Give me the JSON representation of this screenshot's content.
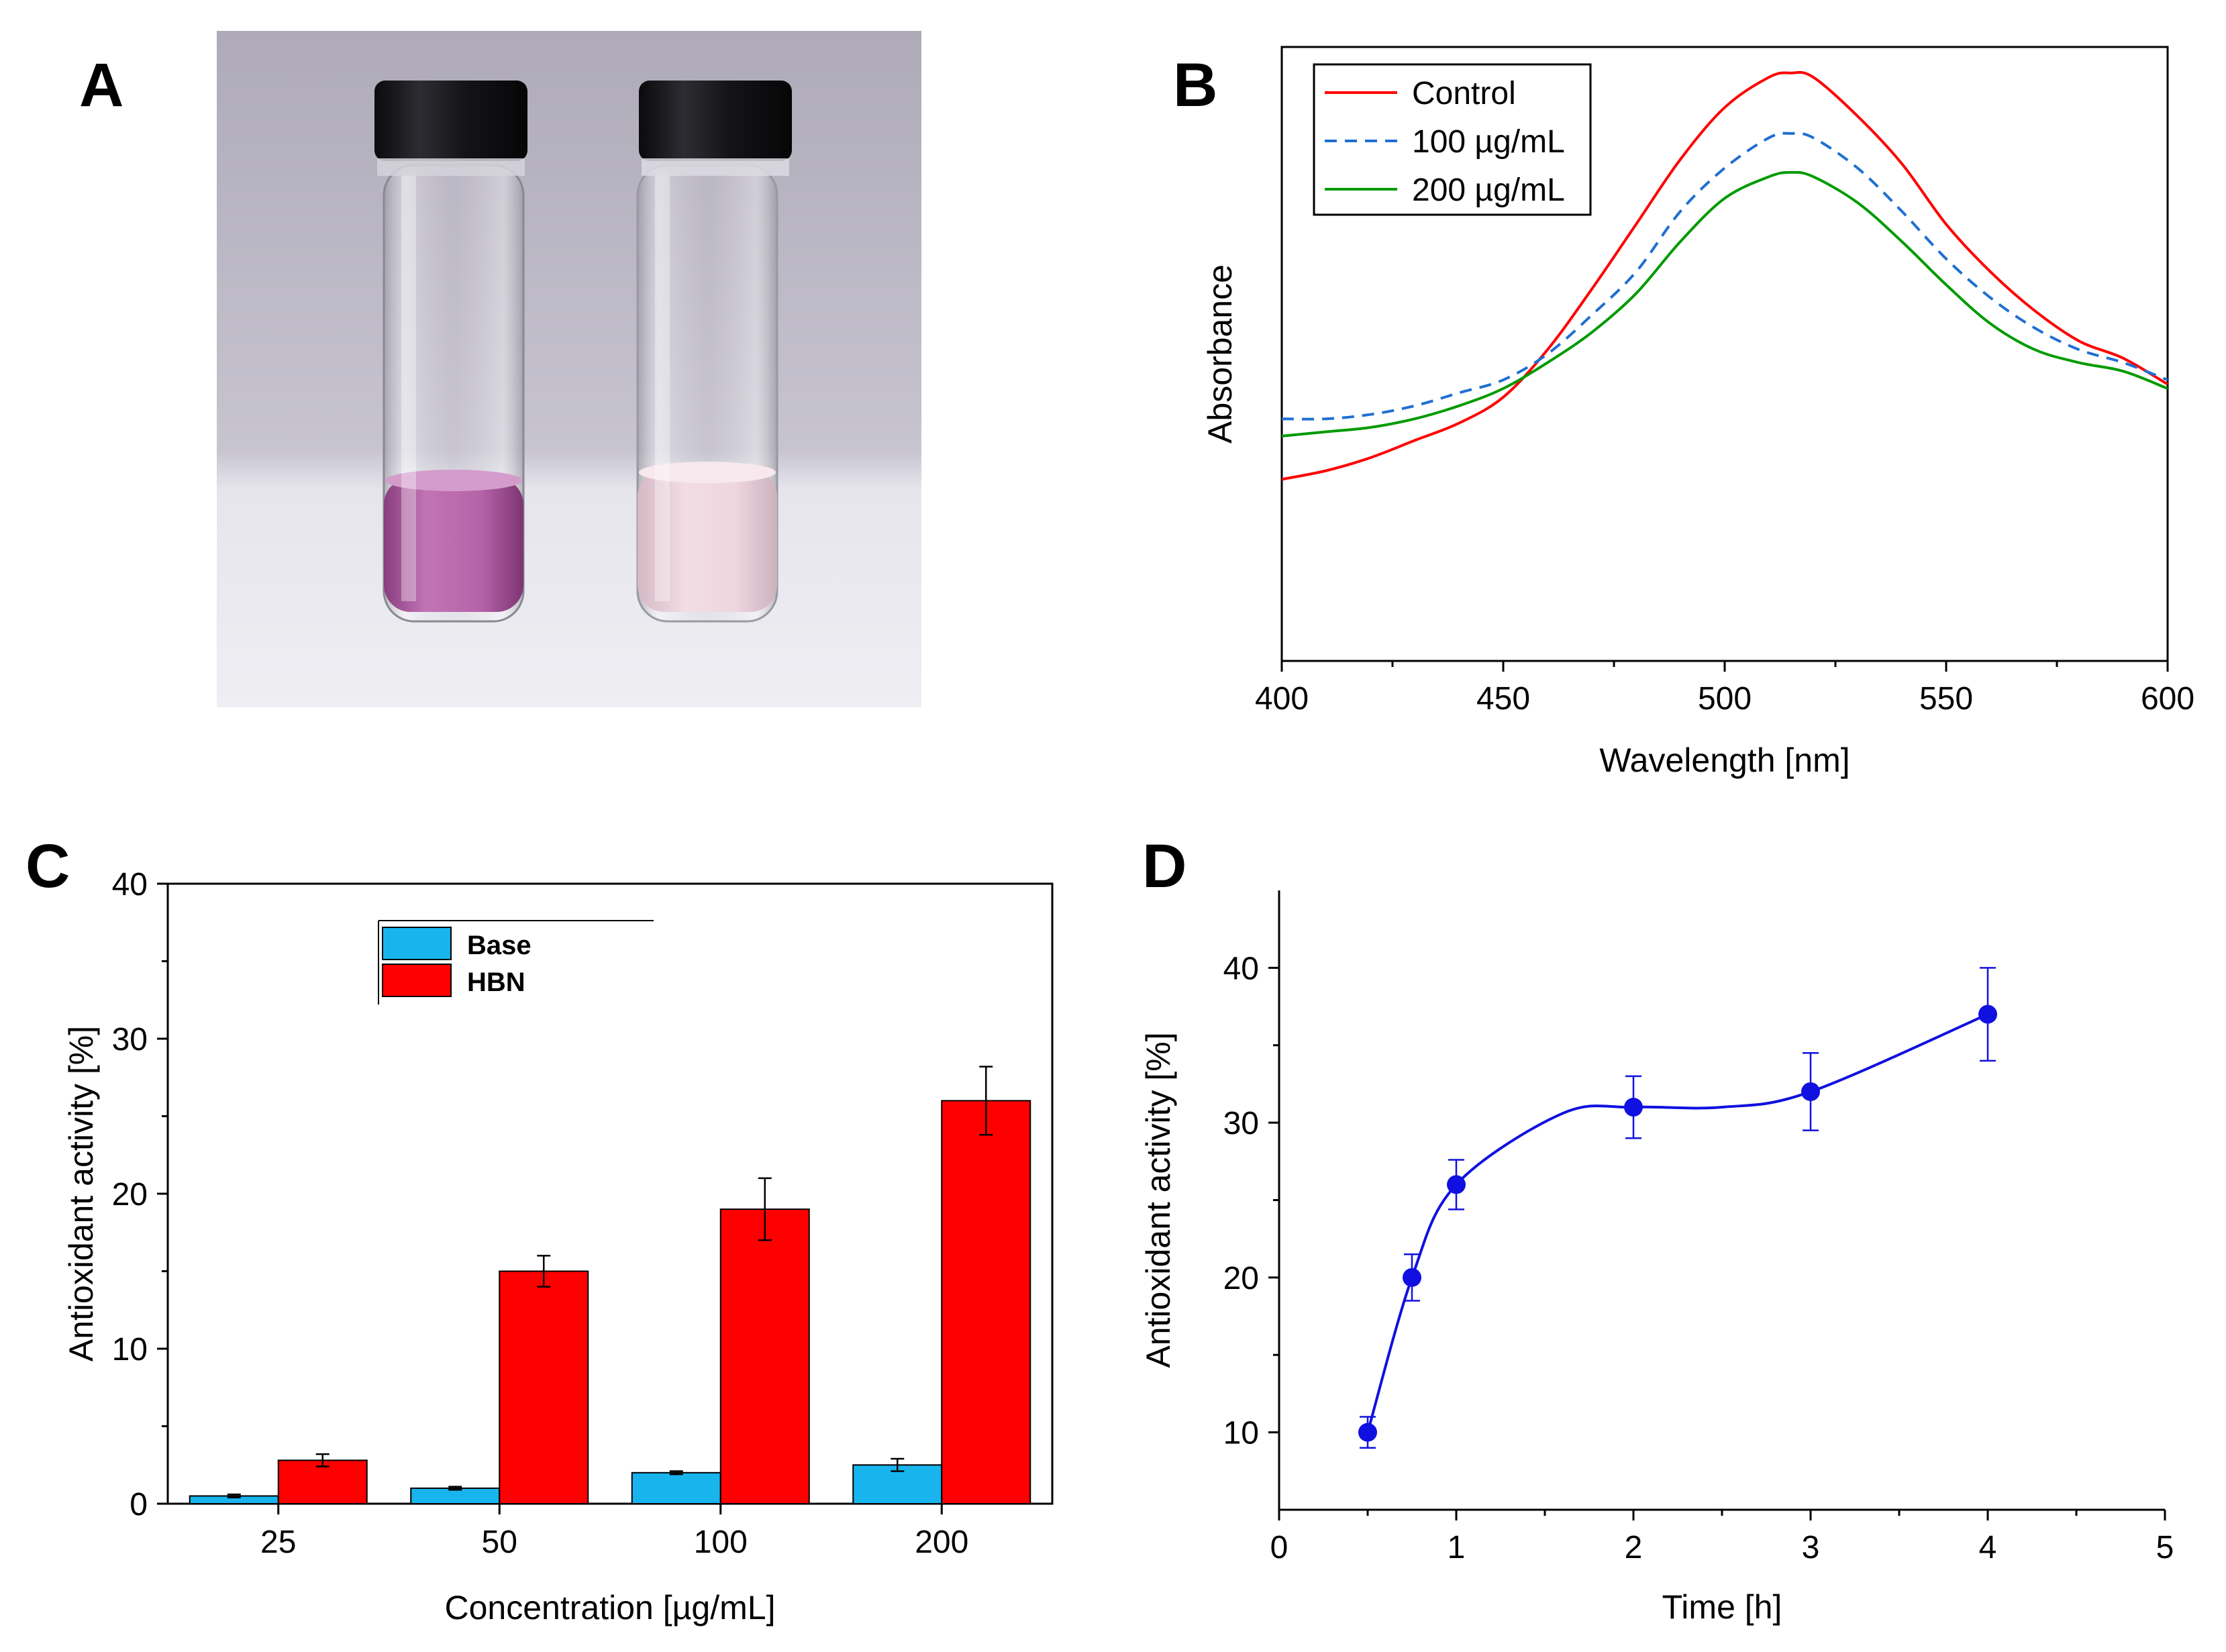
{
  "panels": {
    "a": {
      "letter": "A"
    },
    "b": {
      "letter": "B"
    },
    "c": {
      "letter": "C"
    },
    "d": {
      "letter": "D"
    }
  },
  "chart_data": [
    {
      "id": "B",
      "type": "line",
      "xlabel": "Wavelength [nm]",
      "ylabel": "Absorbance",
      "xlim": [
        400,
        600
      ],
      "ylim": [
        0,
        1
      ],
      "xticks": [
        400,
        450,
        500,
        550,
        600
      ],
      "yticks_visible": false,
      "legend": "top-left",
      "series": [
        {
          "name": "Control",
          "color": "#ff0000",
          "dash": "solid",
          "x": [
            400,
            410,
            420,
            430,
            440,
            450,
            460,
            470,
            480,
            490,
            500,
            510,
            515,
            520,
            530,
            540,
            550,
            560,
            570,
            580,
            590,
            600
          ],
          "y": [
            0.1,
            0.12,
            0.15,
            0.19,
            0.23,
            0.29,
            0.4,
            0.54,
            0.69,
            0.84,
            0.96,
            1.03,
            1.04,
            1.03,
            0.94,
            0.83,
            0.69,
            0.58,
            0.49,
            0.42,
            0.38,
            0.32
          ]
        },
        {
          "name": "100 µg/mL",
          "color": "#1f6fd1",
          "dash": "dashed",
          "x": [
            400,
            410,
            420,
            430,
            440,
            450,
            460,
            470,
            480,
            490,
            500,
            510,
            515,
            520,
            530,
            540,
            550,
            560,
            570,
            580,
            590,
            600
          ],
          "y": [
            0.24,
            0.24,
            0.25,
            0.27,
            0.3,
            0.33,
            0.39,
            0.48,
            0.58,
            0.72,
            0.82,
            0.89,
            0.9,
            0.89,
            0.82,
            0.72,
            0.61,
            0.52,
            0.45,
            0.4,
            0.37,
            0.33
          ]
        },
        {
          "name": "200 µg/mL",
          "color": "#009a00",
          "dash": "solid",
          "x": [
            400,
            410,
            420,
            430,
            440,
            450,
            460,
            470,
            480,
            490,
            500,
            510,
            515,
            520,
            530,
            540,
            550,
            560,
            570,
            580,
            590,
            600
          ],
          "y": [
            0.2,
            0.21,
            0.22,
            0.24,
            0.27,
            0.31,
            0.37,
            0.44,
            0.53,
            0.65,
            0.75,
            0.8,
            0.81,
            0.8,
            0.74,
            0.65,
            0.55,
            0.46,
            0.4,
            0.37,
            0.35,
            0.31
          ]
        }
      ]
    },
    {
      "id": "C",
      "type": "bar",
      "xlabel": "Concentration [µg/mL]",
      "ylabel": "Antioxidant activity [%]",
      "categories": [
        "25",
        "50",
        "100",
        "200"
      ],
      "ylim": [
        0,
        40
      ],
      "yticks": [
        0,
        10,
        20,
        30,
        40
      ],
      "legend": "top-left",
      "series": [
        {
          "name": "Base",
          "color": "#18b4ee",
          "values": [
            0.5,
            1.0,
            2.0,
            2.5
          ],
          "errors": [
            0.1,
            0.1,
            0.1,
            0.4
          ]
        },
        {
          "name": "HBN",
          "color": "#ff0000",
          "values": [
            2.8,
            15.0,
            19.0,
            26.0
          ],
          "errors": [
            0.4,
            1.0,
            2.0,
            2.2
          ]
        }
      ]
    },
    {
      "id": "D",
      "type": "scatter",
      "xlabel": "Time [h]",
      "ylabel": "Antioxidant activity [%]",
      "xlim": [
        0,
        5
      ],
      "ylim": [
        5,
        45
      ],
      "xticks": [
        0,
        1,
        2,
        3,
        4,
        5
      ],
      "yticks": [
        10,
        20,
        30,
        40
      ],
      "series": [
        {
          "name": "Antioxidant activity",
          "color": "#1010e0",
          "x": [
            0.5,
            0.75,
            1,
            2,
            3,
            4
          ],
          "y": [
            10,
            20,
            26,
            31,
            32,
            37
          ],
          "errors": [
            1.0,
            1.5,
            1.6,
            2.0,
            2.5,
            3.0
          ],
          "fit": true
        }
      ]
    }
  ]
}
